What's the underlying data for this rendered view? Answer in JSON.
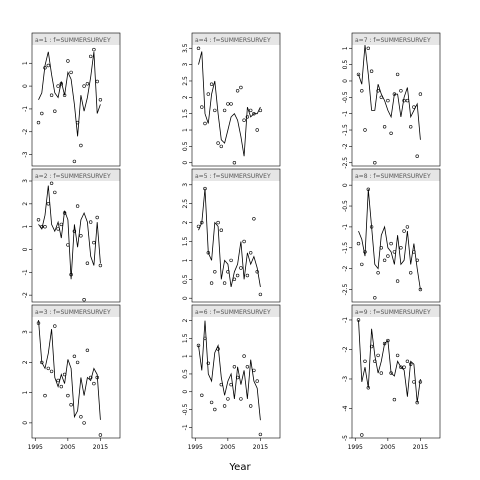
{
  "chart_data": {
    "type": "line",
    "xlabel": "Year",
    "x_ticks": [
      1995,
      2005,
      2015
    ],
    "x_range": [
      1994,
      2021
    ],
    "panels": [
      {
        "label": "a=1 : f=SUMMERSURVEY",
        "ylim": [
          -3.5,
          1.8
        ],
        "yticks": [
          1,
          0,
          -1,
          -2,
          -3
        ],
        "fitted": [
          -0.6,
          -0.3,
          0.9,
          1.5,
          0.5,
          -0.3,
          -0.5,
          0.2,
          -0.4,
          0.6,
          0.3,
          -0.8,
          -2.2,
          -0.4,
          -1.1,
          -0.5,
          0.4,
          1.5,
          -1.2,
          -0.8
        ],
        "observed": [
          -1.6,
          -1.2,
          0.8,
          0.9,
          -0.4,
          -1.1,
          0.0,
          0.1,
          -0.4,
          1.1,
          0.6,
          -3.3,
          -1.6,
          -2.6,
          0.0,
          0.1,
          1.3,
          1.6,
          0.2,
          -0.6
        ]
      },
      {
        "label": "a=4 : f=SUMMERSURVEY",
        "ylim": [
          -0.1,
          3.6
        ],
        "yticks": [
          3.5,
          3.0,
          2.5,
          2.0,
          1.5,
          1.0,
          0.5,
          0.0
        ],
        "fitted": [
          3.0,
          3.4,
          1.5,
          1.2,
          2.1,
          2.5,
          1.5,
          0.7,
          0.6,
          1.0,
          1.4,
          1.5,
          1.3,
          0.8,
          0.2,
          1.7,
          1.4,
          1.5,
          1.5,
          1.7
        ],
        "observed": [
          3.5,
          1.7,
          1.2,
          2.1,
          2.4,
          1.6,
          0.6,
          0.5,
          1.6,
          1.8,
          1.8,
          0.0,
          2.2,
          2.3,
          1.3,
          1.4,
          1.6,
          1.5,
          1.0,
          1.6
        ]
      },
      {
        "label": "a=7 : f=SUMMERSURVEY",
        "ylim": [
          -2.6,
          1.1
        ],
        "yticks": [
          1.0,
          0.5,
          0.0,
          -0.5,
          -1.0,
          -1.5,
          -2.0,
          -2.5
        ],
        "fitted": [
          0.2,
          -0.1,
          1.1,
          0.2,
          -0.9,
          -0.9,
          -0.1,
          -0.4,
          -0.6,
          -0.9,
          -1.1,
          -0.4,
          -0.4,
          -1.1,
          -0.5,
          -0.2,
          -1.1,
          -0.9,
          -0.7,
          -1.8
        ],
        "observed": [
          0.2,
          -0.3,
          -1.5,
          1.0,
          0.3,
          -2.5,
          -0.3,
          -0.5,
          -1.4,
          -0.6,
          -1.6,
          -0.4,
          0.2,
          -0.3,
          -0.6,
          -0.6,
          -1.4,
          -0.8,
          -2.3,
          -0.4
        ]
      },
      {
        "label": "a=2 : f=SUMMERSURVEY",
        "ylim": [
          -2.3,
          3.0
        ],
        "yticks": [
          3,
          2,
          1,
          0,
          -1,
          -2
        ],
        "fitted": [
          1.1,
          0.9,
          1.5,
          2.8,
          1.1,
          0.8,
          1.2,
          0.5,
          1.7,
          1.3,
          -1.3,
          1.1,
          0.1,
          1.3,
          1.6,
          1.2,
          -0.3,
          -0.7,
          1.2,
          -0.6
        ],
        "observed": [
          1.3,
          1.0,
          1.0,
          2.0,
          2.9,
          2.5,
          0.9,
          1.1,
          1.6,
          0.2,
          -1.1,
          0.8,
          1.9,
          0.6,
          -2.2,
          -0.6,
          1.2,
          0.3,
          1.4,
          -0.7
        ]
      },
      {
        "label": "a=5 : f=SUMMERSURVEY",
        "ylim": [
          -0.1,
          3.1
        ],
        "yticks": [
          3.0,
          2.5,
          2.0,
          1.5,
          1.0,
          0.5,
          0.0
        ],
        "fitted": [
          1.8,
          2.0,
          2.9,
          1.2,
          1.0,
          2.0,
          1.9,
          0.5,
          1.0,
          0.9,
          0.3,
          0.7,
          0.9,
          1.5,
          0.5,
          1.2,
          0.9,
          1.1,
          0.8,
          0.3
        ],
        "observed": [
          1.9,
          2.0,
          2.9,
          1.2,
          0.4,
          0.7,
          2.0,
          1.8,
          0.4,
          0.7,
          1.0,
          0.5,
          0.6,
          0.8,
          1.5,
          0.6,
          1.2,
          2.1,
          0.7,
          0.1
        ]
      },
      {
        "label": "a=8 : f=SUMMERSURVEY",
        "ylim": [
          -2.8,
          0.1
        ],
        "yticks": [
          0.0,
          -0.5,
          -1.0,
          -1.5,
          -2.0,
          -2.5
        ],
        "fitted": [
          -1.1,
          -1.3,
          -1.7,
          -0.1,
          -1.0,
          -1.9,
          -2.0,
          -1.2,
          -1.0,
          -1.5,
          -1.6,
          -1.9,
          -1.2,
          -1.9,
          -1.8,
          -1.1,
          -1.9,
          -1.4,
          -2.0,
          -2.5
        ],
        "observed": [
          -1.4,
          -1.9,
          -1.6,
          -0.1,
          -1.0,
          -2.7,
          -2.1,
          -1.5,
          -1.8,
          -1.7,
          -1.4,
          -1.6,
          -2.3,
          -1.5,
          -1.1,
          -1.0,
          -2.1,
          -1.6,
          -1.8,
          -2.5
        ]
      },
      {
        "label": "a=3 : f=SUMMERSURVEY",
        "ylim": [
          -0.5,
          3.5
        ],
        "yticks": [
          3,
          2,
          1,
          0
        ],
        "fitted": [
          3.4,
          2.0,
          1.8,
          2.3,
          3.1,
          1.5,
          1.2,
          1.6,
          1.3,
          2.1,
          1.8,
          0.2,
          0.4,
          1.5,
          0.9,
          1.5,
          1.4,
          1.8,
          1.6,
          0.1
        ],
        "observed": [
          3.3,
          2.0,
          0.9,
          1.8,
          1.7,
          3.2,
          1.4,
          1.2,
          1.6,
          0.9,
          0.6,
          2.2,
          2.0,
          0.2,
          0.0,
          2.4,
          1.5,
          1.3,
          1.5,
          -0.4
        ]
      },
      {
        "label": "a=6 : f=SUMMERSURVEY",
        "ylim": [
          -1.3,
          2.1
        ],
        "yticks": [
          2.0,
          1.5,
          1.0,
          0.5,
          0.0,
          -0.5,
          -1.0
        ],
        "fitted": [
          1.3,
          0.6,
          2.0,
          0.5,
          0.3,
          1.1,
          1.3,
          0.4,
          -0.1,
          0.3,
          0.5,
          -0.2,
          0.7,
          0.2,
          0.6,
          -0.2,
          0.9,
          0.3,
          0.1,
          -0.8
        ],
        "observed": [
          1.3,
          -0.1,
          1.5,
          0.8,
          -0.3,
          -0.5,
          1.2,
          0.2,
          -0.4,
          -0.2,
          0.2,
          0.7,
          0.4,
          -0.2,
          1.0,
          0.7,
          -0.4,
          0.6,
          0.3,
          -1.2
        ]
      },
      {
        "label": "a=9 : f=SUMMERSURVEY",
        "ylim": [
          -5.0,
          -0.9
        ],
        "yticks": [
          -1,
          -2,
          -3,
          -4,
          -5
        ],
        "fitted": [
          -1.0,
          -3.1,
          -2.6,
          -3.3,
          -1.3,
          -2.2,
          -2.8,
          -2.4,
          -1.8,
          -1.7,
          -2.8,
          -2.9,
          -2.4,
          -2.6,
          -2.7,
          -3.6,
          -2.4,
          -2.5,
          -3.8,
          -3.0
        ],
        "observed": [
          -1.0,
          -4.9,
          -2.4,
          -3.3,
          -1.9,
          -2.4,
          -2.2,
          -2.8,
          -1.8,
          -1.7,
          -2.8,
          -3.7,
          -2.2,
          -2.6,
          -2.6,
          -2.4,
          -2.5,
          -3.1,
          -3.8,
          -3.1
        ]
      }
    ]
  }
}
